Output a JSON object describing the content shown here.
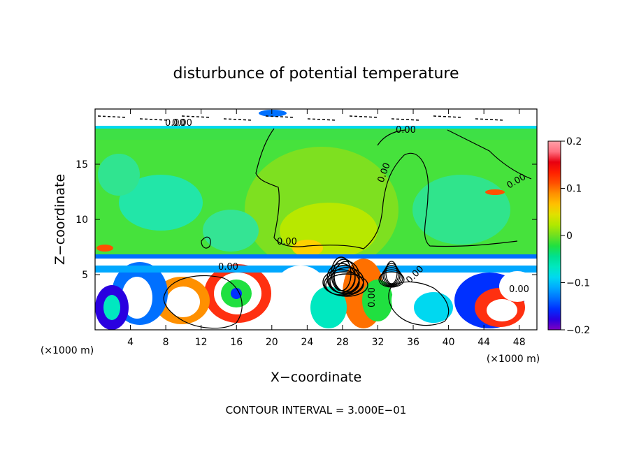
{
  "chart_data": {
    "type": "heatmap",
    "title": "disturbunce of potential temperature",
    "xlabel": "X−coordinate",
    "ylabel": "Z−coordinate",
    "x_unit": "(×1000 m)",
    "x_unit_right": "(×1000 m)",
    "xlim": [
      0,
      50
    ],
    "ylim": [
      0,
      20
    ],
    "x_ticks": [
      4,
      8,
      12,
      16,
      20,
      24,
      28,
      32,
      36,
      40,
      44,
      48
    ],
    "y_ticks": [
      5,
      10,
      15
    ],
    "colorbar": {
      "range": [
        -0.2,
        0.2
      ],
      "ticks": [
        0.2,
        0.1,
        0,
        -0.1,
        -0.2
      ],
      "tick_labels": [
        "0.2",
        "0.1",
        "0",
        "−0.1",
        "−0.2"
      ],
      "colors": [
        "#7f00c0",
        "#2a00e0",
        "#0030ff",
        "#0070ff",
        "#00a8ff",
        "#00d8f0",
        "#00e8c0",
        "#00e090",
        "#20e040",
        "#70e020",
        "#b0e800",
        "#e0e000",
        "#ffc000",
        "#ff9000",
        "#ff5000",
        "#ff2000",
        "#e80010",
        "#ff7080",
        "#ffa0a8"
      ]
    },
    "contour_labels": [
      "0.00",
      "0.00",
      "0.00",
      "0.00",
      "0.00",
      "0.00",
      "0.00",
      "0.00",
      "0.00",
      "0.00"
    ],
    "footer": "CONTOUR INTERVAL = 3.000E−01"
  }
}
